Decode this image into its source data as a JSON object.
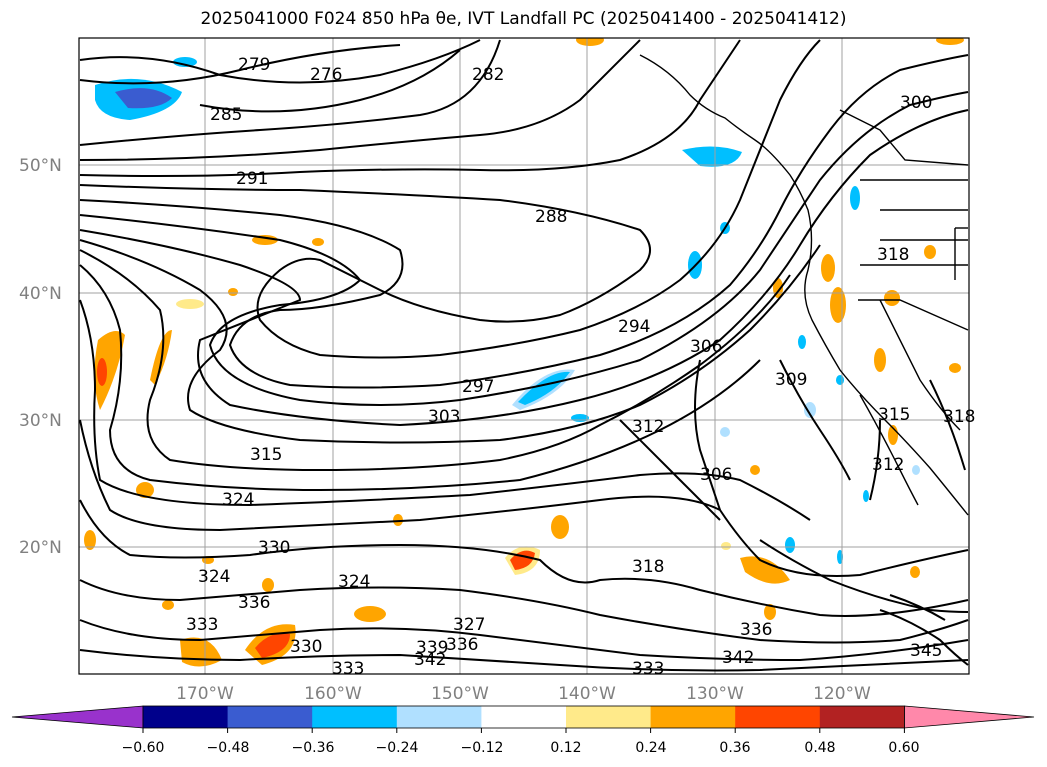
{
  "title": "2025041000 F024 850 hPa θe, IVT Landfall PC (2025041400 - 2025041412)",
  "map": {
    "lat_labels": [
      "50°N",
      "40°N",
      "30°N",
      "20°N"
    ],
    "lon_labels": [
      "170°W",
      "160°W",
      "150°W",
      "140°W",
      "130°W",
      "120°W"
    ],
    "contour_labels": [
      "279",
      "276",
      "282",
      "285",
      "291",
      "288",
      "300",
      "294",
      "306",
      "318",
      "297",
      "303",
      "309",
      "312",
      "315",
      "315",
      "318",
      "324",
      "306",
      "312",
      "330",
      "324",
      "324",
      "318",
      "336",
      "333",
      "327",
      "339",
      "336",
      "342",
      "333",
      "342",
      "336",
      "330",
      "345",
      "333"
    ],
    "colors": {
      "contour": "#000000",
      "grid": "#a0a0a0",
      "blue_deep": "#3a5cd0",
      "blue_mid": "#00bfff",
      "blue_light": "#b0e0ff",
      "yellow": "#ffea8a",
      "orange": "#ffa500",
      "red_orange": "#ff4500"
    }
  },
  "colorbar": {
    "ticks": [
      "−0.60",
      "−0.48",
      "−0.36",
      "−0.24",
      "−0.12",
      "0.12",
      "0.24",
      "0.36",
      "0.48",
      "0.60"
    ],
    "colors": [
      "#9932cc",
      "#00008b",
      "#3a5cd0",
      "#00bfff",
      "#b0e0ff",
      "#ffffff",
      "#ffea8a",
      "#ffa500",
      "#ff4500",
      "#b22222",
      "#ff88aa"
    ]
  }
}
